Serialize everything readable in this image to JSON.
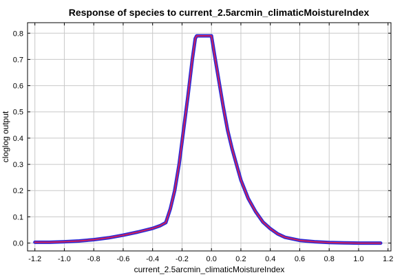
{
  "chart_data": {
    "type": "line",
    "title": "Response of species to current_2.5arcmin_climaticMoistureIndex",
    "xlabel": "current_2.5arcmin_climaticMoistureIndex",
    "ylabel": "cloglog output",
    "xlim": [
      -1.25,
      1.22
    ],
    "ylim": [
      -0.03,
      0.84
    ],
    "grid": true,
    "x_ticks": [
      "-1.2",
      "-1.0",
      "-0.8",
      "-0.6",
      "-0.4",
      "-0.2",
      "0.0",
      "0.2",
      "0.4",
      "0.6",
      "0.8",
      "1.0",
      "1.2"
    ],
    "y_ticks": [
      "0.0",
      "0.1",
      "0.2",
      "0.3",
      "0.4",
      "0.5",
      "0.6",
      "0.7",
      "0.8"
    ],
    "series": [
      {
        "color": "#d0205a",
        "x": [
          -1.2,
          -1.1,
          -1.0,
          -0.9,
          -0.8,
          -0.7,
          -0.6,
          -0.5,
          -0.4,
          -0.35,
          -0.31,
          -0.28,
          -0.25,
          -0.22,
          -0.19,
          -0.16,
          -0.13,
          -0.11,
          -0.1,
          -0.05,
          -0.03,
          -0.02,
          0.0,
          0.02,
          0.05,
          0.08,
          0.11,
          0.14,
          0.17,
          0.2,
          0.25,
          0.3,
          0.35,
          0.4,
          0.45,
          0.5,
          0.6,
          0.7,
          0.8,
          0.9,
          1.0,
          1.15
        ],
        "y": [
          0.003,
          0.003,
          0.005,
          0.008,
          0.013,
          0.02,
          0.03,
          0.042,
          0.056,
          0.066,
          0.078,
          0.13,
          0.2,
          0.3,
          0.43,
          0.56,
          0.7,
          0.78,
          0.79,
          0.79,
          0.79,
          0.79,
          0.79,
          0.72,
          0.62,
          0.52,
          0.43,
          0.36,
          0.3,
          0.24,
          0.17,
          0.12,
          0.08,
          0.055,
          0.035,
          0.022,
          0.01,
          0.005,
          0.002,
          0.001,
          0.0,
          0.0
        ]
      }
    ],
    "band_color": "#2a2ad8"
  }
}
